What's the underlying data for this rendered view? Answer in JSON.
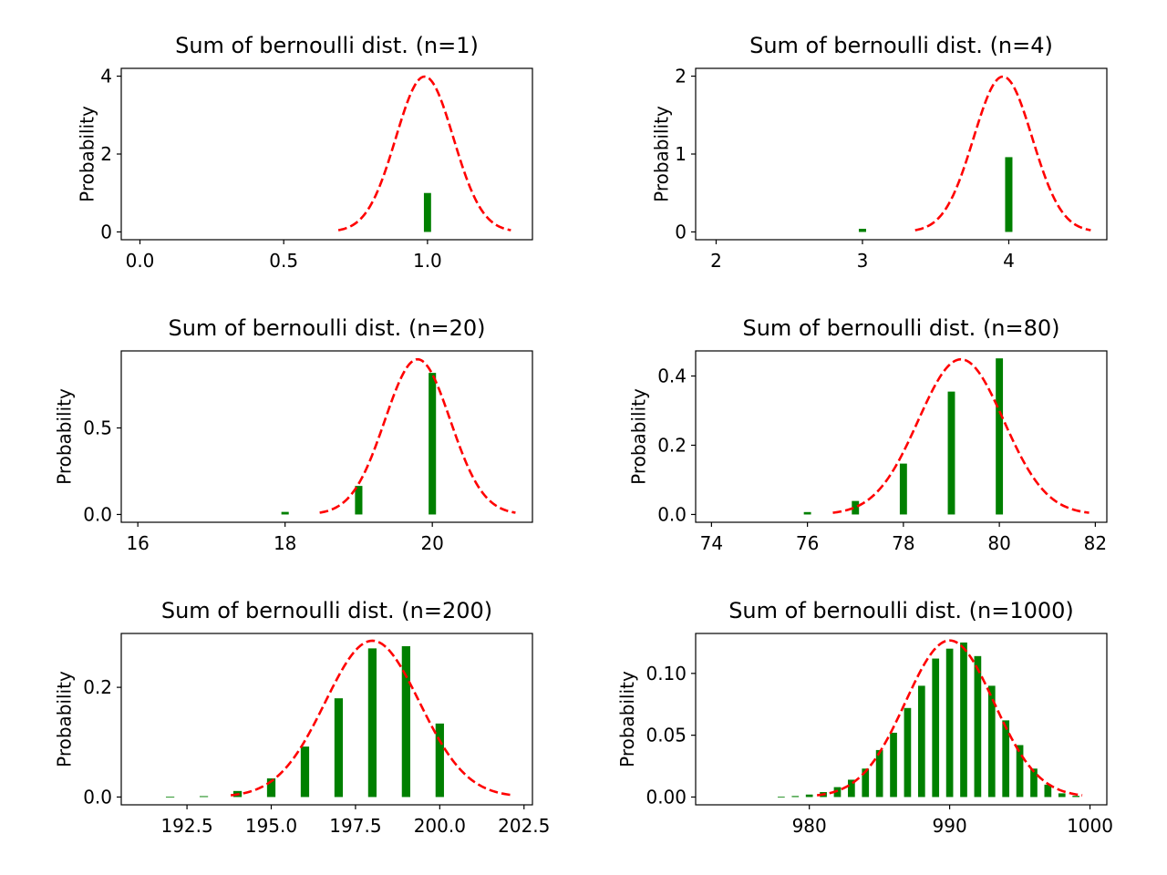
{
  "figure": {
    "background": "#ffffff"
  },
  "chart_data": [
    {
      "type": "bar",
      "title": "Sum of bernoulli dist. (n=1)",
      "xlabel": "",
      "ylabel": "Probability",
      "xlim": [
        -0.065,
        1.365
      ],
      "ylim": [
        -0.2,
        4.2
      ],
      "xticks": [
        "0.0",
        "0.5",
        "1.0"
      ],
      "xtick_values": [
        0.0,
        0.5,
        1.0
      ],
      "yticks": [
        "0",
        "2",
        "4"
      ],
      "ytick_values": [
        0,
        2,
        4
      ],
      "bars": {
        "x": [
          1
        ],
        "values": [
          1.0
        ],
        "width": 0.025,
        "color": "#008000"
      },
      "curve": {
        "mu": 0.99,
        "sigma": 0.1,
        "x_range": [
          0.69,
          1.29
        ],
        "color": "#ff0000",
        "style": "dashed"
      }
    },
    {
      "type": "bar",
      "title": "Sum of bernoulli dist. (n=4)",
      "xlabel": "",
      "ylabel": "Probability",
      "xlim": [
        1.86,
        4.67
      ],
      "ylim": [
        -0.1,
        2.1
      ],
      "xticks": [
        "2",
        "3",
        "4"
      ],
      "xtick_values": [
        2,
        3,
        4
      ],
      "yticks": [
        "0",
        "1",
        "2"
      ],
      "ytick_values": [
        0,
        1,
        2
      ],
      "bars": {
        "x": [
          3,
          4
        ],
        "values": [
          0.04,
          0.96
        ],
        "width": 0.05,
        "color": "#008000"
      },
      "curve": {
        "mu": 3.96,
        "sigma": 0.2,
        "x_range": [
          3.36,
          4.56
        ],
        "color": "#ff0000",
        "style": "dashed"
      }
    },
    {
      "type": "bar",
      "title": "Sum of bernoulli dist. (n=20)",
      "xlabel": "",
      "ylabel": "Probability",
      "xlim": [
        15.775,
        21.36
      ],
      "ylim": [
        -0.045,
        0.945
      ],
      "xticks": [
        "16",
        "18",
        "20"
      ],
      "xtick_values": [
        16,
        18,
        20
      ],
      "yticks": [
        "0.0",
        "0.5"
      ],
      "ytick_values": [
        0.0,
        0.5
      ],
      "bars": {
        "x": [
          18,
          19,
          20
        ],
        "values": [
          0.015,
          0.165,
          0.818
        ],
        "width": 0.1,
        "color": "#008000"
      },
      "curve": {
        "mu": 19.8,
        "sigma": 0.445,
        "x_range": [
          18.47,
          21.13
        ],
        "color": "#ff0000",
        "style": "dashed"
      }
    },
    {
      "type": "bar",
      "title": "Sum of bernoulli dist. (n=80)",
      "xlabel": "",
      "ylabel": "Probability",
      "xlim": [
        73.67,
        82.24
      ],
      "ylim": [
        -0.0225,
        0.4725
      ],
      "xticks": [
        "74",
        "76",
        "78",
        "80",
        "82"
      ],
      "xtick_values": [
        74,
        76,
        78,
        80,
        82
      ],
      "yticks": [
        "0.0",
        "0.2",
        "0.4"
      ],
      "ytick_values": [
        0.0,
        0.2,
        0.4
      ],
      "bars": {
        "x": [
          76,
          77,
          78,
          79,
          80
        ],
        "values": [
          0.007,
          0.039,
          0.147,
          0.355,
          0.451
        ],
        "width": 0.15,
        "color": "#008000"
      },
      "curve": {
        "mu": 79.2,
        "sigma": 0.89,
        "x_range": [
          76.53,
          81.87
        ],
        "color": "#ff0000",
        "style": "dashed"
      }
    },
    {
      "type": "bar",
      "title": "Sum of bernoulli dist. (n=200)",
      "xlabel": "",
      "ylabel": "Probability",
      "xlim": [
        190.55,
        202.75
      ],
      "ylim": [
        -0.0142,
        0.2982
      ],
      "xticks": [
        "192.5",
        "195.0",
        "197.5",
        "200.0",
        "202.5"
      ],
      "xtick_values": [
        192.5,
        195.0,
        197.5,
        200.0,
        202.5
      ],
      "yticks": [
        "0.0",
        "0.2"
      ],
      "ytick_values": [
        0.0,
        0.2
      ],
      "bars": {
        "x": [
          192,
          193,
          194,
          195,
          196,
          197,
          198,
          199,
          200
        ],
        "values": [
          0.0007,
          0.0016,
          0.011,
          0.034,
          0.092,
          0.18,
          0.271,
          0.275,
          0.134
        ],
        "width": 0.25,
        "color": "#008000"
      },
      "curve": {
        "mu": 198.0,
        "sigma": 1.4,
        "x_range": [
          193.8,
          202.2
        ],
        "color": "#ff0000",
        "style": "dashed"
      }
    },
    {
      "type": "bar",
      "title": "Sum of bernoulli dist. (n=1000)",
      "xlabel": "",
      "ylabel": "Probability",
      "xlim": [
        971.9,
        1001.2
      ],
      "ylim": [
        -0.0063,
        0.1323
      ],
      "xticks": [
        "980",
        "990",
        "1000"
      ],
      "xtick_values": [
        980,
        990,
        1000
      ],
      "yticks": [
        "0.00",
        "0.05",
        "0.10"
      ],
      "ytick_values": [
        0.0,
        0.05,
        0.1
      ],
      "bars": {
        "x": [
          978,
          979,
          980,
          981,
          982,
          983,
          984,
          985,
          986,
          987,
          988,
          989,
          990,
          991,
          992,
          993,
          994,
          995,
          996,
          997,
          998,
          999
        ],
        "values": [
          0.0002,
          0.0008,
          0.002,
          0.004,
          0.008,
          0.014,
          0.023,
          0.038,
          0.052,
          0.072,
          0.09,
          0.112,
          0.12,
          0.125,
          0.114,
          0.09,
          0.062,
          0.042,
          0.023,
          0.01,
          0.003,
          0.001
        ],
        "width": 0.5,
        "color": "#008000"
      },
      "curve": {
        "mu": 990.0,
        "sigma": 3.15,
        "x_range": [
          980.55,
          999.45
        ],
        "color": "#ff0000",
        "style": "dashed"
      }
    }
  ]
}
